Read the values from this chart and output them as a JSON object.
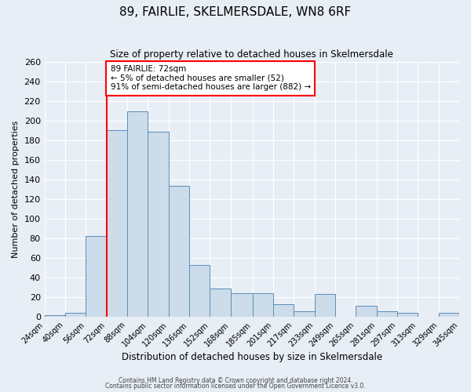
{
  "title": "89, FAIRLIE, SKELMERSDALE, WN8 6RF",
  "subtitle": "Size of property relative to detached houses in Skelmersdale",
  "xlabel": "Distribution of detached houses by size in Skelmersdale",
  "ylabel": "Number of detached properties",
  "bar_labels": [
    "24sqm",
    "40sqm",
    "56sqm",
    "72sqm",
    "88sqm",
    "104sqm",
    "120sqm",
    "136sqm",
    "152sqm",
    "168sqm",
    "185sqm",
    "201sqm",
    "217sqm",
    "233sqm",
    "249sqm",
    "265sqm",
    "281sqm",
    "297sqm",
    "313sqm",
    "329sqm",
    "345sqm"
  ],
  "bar_values": [
    2,
    4,
    83,
    191,
    210,
    189,
    134,
    53,
    29,
    24,
    24,
    13,
    6,
    23,
    0,
    11,
    6,
    4,
    0,
    4
  ],
  "bar_color": "#ccdcea",
  "bar_edge_color": "#5b8db8",
  "property_line_x": 72,
  "ylim": [
    0,
    260
  ],
  "yticks": [
    0,
    20,
    40,
    60,
    80,
    100,
    120,
    140,
    160,
    180,
    200,
    220,
    240,
    260
  ],
  "annotation_title": "89 FAIRLIE: 72sqm",
  "annotation_line1": "← 5% of detached houses are smaller (52)",
  "annotation_line2": "91% of semi-detached houses are larger (882) →",
  "footer1": "Contains HM Land Registry data © Crown copyright and database right 2024.",
  "footer2": "Contains public sector information licensed under the Open Government Licence v3.0.",
  "background_color": "#e8eef5",
  "grid_color": "#ffffff"
}
